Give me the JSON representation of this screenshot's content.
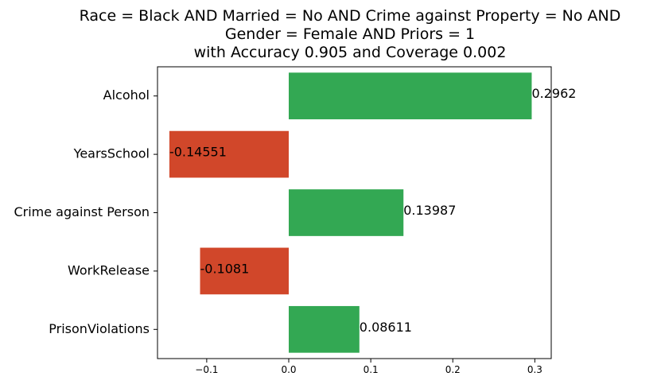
{
  "chart_data": {
    "type": "bar",
    "orientation": "horizontal",
    "title_lines": [
      "Race = Black AND Married = No AND Crime against Property = No AND",
      "Gender = Female AND Priors = 1",
      "with Accuracy 0.905 and Coverage 0.002"
    ],
    "categories": [
      "Alcohol",
      "YearsSchool",
      "Crime against Person",
      "WorkRelease",
      "PrisonViolations"
    ],
    "values": [
      0.2962,
      -0.14551,
      0.13987,
      -0.1081,
      0.08611
    ],
    "value_labels": [
      "0.2962",
      "-0.14551",
      "0.13987",
      "-0.1081",
      "0.08611"
    ],
    "xlim": [
      -0.16,
      0.32
    ],
    "xticks": [
      -0.1,
      0.0,
      0.1,
      0.2,
      0.3
    ],
    "xtick_labels": [
      "−0.1",
      "0.0",
      "0.1",
      "0.2",
      "0.3"
    ],
    "grid": false,
    "colors": {
      "positive": "#33a853",
      "negative": "#d1472a",
      "axis": "#000000",
      "text": "#000000"
    }
  }
}
